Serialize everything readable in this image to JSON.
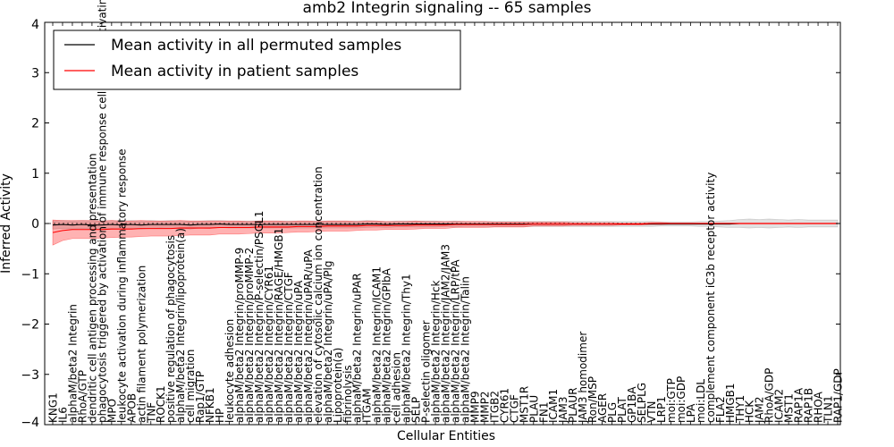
{
  "chart_data": {
    "type": "line",
    "title": "amb2 Integrin signaling -- 65 samples",
    "xlabel": "Cellular Entities",
    "ylabel": "Inferred Activity",
    "ylim": [
      -4,
      4
    ],
    "yticks": [
      -4,
      -3,
      -2,
      -1,
      0,
      1,
      2,
      3,
      4
    ],
    "legend_position": "top-left",
    "categories": [
      "KNG1",
      "IL6",
      "alphaM/beta2 Integrin",
      "RhoA/GTP",
      "dendritic cell antigen processing and presentation",
      "phagocytosis triggered by activation of immune response cell surface activating receptor",
      "MPO",
      "leukocyte activation during inflammatory response",
      "APOB",
      "actin filament polymerization",
      "TNF",
      "ROCK1",
      "positive regulation of phagocytosis",
      "alphaM/beta2 Integrin/lipoprotein(a)",
      "cell migration",
      "Rap1/GTP",
      "NFKB1",
      "HP",
      "leukocyte adhesion",
      "alphaM/beta2 Integrin/proMMP-9",
      "alphaM/beta2 Integrin/proMMP-2",
      "alphaM/beta2 Integrin/P-selectin/PSGL1",
      "alphaM/beta2 Integrin/CYR61",
      "alphaM/beta2 Integrin/RAGE/HMGB1",
      "alphaM/beta2 Integrin/CTGF",
      "alphaM/beta2 Integrin/uPA",
      "alphaM/beta2 Integrin/uPAR/uPA",
      "elevation of cytosolic calcium ion concentration",
      "alphaM/beta2 Integrin/uPA/Plg",
      "Lipoprotein(a)",
      "fibrinolysis",
      "alphaM/beta2 Integrin/uPAR",
      "ITGAM",
      "alphaM/beta2 Integrin/ICAM1",
      "alphaM/beta2 Integrin/GPIbA",
      "cell adhesion",
      "alphaM/beta2 Integrin/Thy1",
      "SELP",
      "P-selectin oligomer",
      "alphaM/beta2 Integrin/Hck",
      "alphaM/beta2 Integrin/JAM2/JAM3",
      "alphaM/beta2 Integrin/LRP/tPA",
      "alphaM/beta2 Integrin/Talin",
      "MMP9",
      "MMP2",
      "ITGB2",
      "CYR61",
      "CTGF",
      "MST1R",
      "PLAU",
      "FN1",
      "ICAM1",
      "JAM3",
      "PLAUR",
      "JAM3 homodimer",
      "Ron/MSP",
      "AGER",
      "PLG",
      "PLAT",
      "GP1BA",
      "SELPLG",
      "VTN",
      "LRP1",
      "moi:GTP",
      "moi:GDP",
      "LPA",
      "moi:LDL",
      "complement component iC3b receptor activity",
      "FLA2",
      "HMGB1",
      "THY1",
      "HCK",
      "JAM2",
      "RhoA/GDP",
      "ICAM2",
      "MST1",
      "RAP1A",
      "RAP1B",
      "RHOA",
      "TLN1",
      "RAP1/GDP"
    ],
    "series": [
      {
        "name": "Mean activity in all permuted samples",
        "color": "#000000",
        "values": [
          -0.03,
          -0.02,
          -0.03,
          -0.02,
          -0.03,
          -0.03,
          -0.02,
          -0.03,
          -0.02,
          -0.03,
          -0.02,
          -0.02,
          -0.02,
          -0.02,
          -0.03,
          -0.02,
          -0.02,
          -0.01,
          -0.02,
          -0.02,
          -0.02,
          -0.02,
          -0.02,
          -0.02,
          -0.02,
          -0.02,
          -0.02,
          -0.02,
          -0.02,
          -0.02,
          -0.02,
          -0.02,
          -0.01,
          -0.01,
          -0.02,
          -0.01,
          -0.01,
          -0.01,
          -0.01,
          -0.01,
          -0.01,
          -0.01,
          -0.01,
          -0.01,
          -0.01,
          -0.01,
          -0.01,
          -0.01,
          -0.01,
          -0.01,
          -0.01,
          -0.01,
          -0.01,
          -0.01,
          -0.01,
          -0.01,
          -0.01,
          -0.01,
          -0.01,
          -0.01,
          -0.01,
          -0.01,
          -0.01,
          -0.01,
          -0.01,
          -0.01,
          -0.01,
          -0.01,
          -0.01,
          -0.01,
          0,
          0,
          0,
          0,
          0,
          0,
          0,
          0,
          0,
          0,
          0
        ],
        "band": [
          0.08,
          0.08,
          0.08,
          0.08,
          0.08,
          0.08,
          0.08,
          0.08,
          0.08,
          0.08,
          0.08,
          0.07,
          0.08,
          0.07,
          0.08,
          0.07,
          0.08,
          0.07,
          0.07,
          0.07,
          0.07,
          0.07,
          0.07,
          0.07,
          0.07,
          0.07,
          0.07,
          0.07,
          0.07,
          0.07,
          0.07,
          0.07,
          0.07,
          0.06,
          0.06,
          0.06,
          0.06,
          0.06,
          0.06,
          0.06,
          0.05,
          0.06,
          0.05,
          0.05,
          0.05,
          0.05,
          0.05,
          0.05,
          0.05,
          0.05,
          0.05,
          0.05,
          0.05,
          0.05,
          0.05,
          0.05,
          0.05,
          0.05,
          0.05,
          0.05,
          0.05,
          0.05,
          0.04,
          0.04,
          0.04,
          0.04,
          0.05,
          0.05,
          0.06,
          0.07,
          0.08,
          0.09,
          0.08,
          0.09,
          0.08,
          0.07,
          0.08,
          0.07,
          0.07,
          0.07,
          0.07
        ]
      },
      {
        "name": "Mean activity in patient samples",
        "color": "#ff0000",
        "values": [
          -0.18,
          -0.14,
          -0.12,
          -0.12,
          -0.12,
          -0.12,
          -0.11,
          -0.11,
          -0.11,
          -0.1,
          -0.1,
          -0.1,
          -0.1,
          -0.09,
          -0.09,
          -0.09,
          -0.09,
          -0.08,
          -0.08,
          -0.08,
          -0.08,
          -0.07,
          -0.07,
          -0.07,
          -0.07,
          -0.06,
          -0.06,
          -0.06,
          -0.05,
          -0.05,
          -0.05,
          -0.05,
          -0.04,
          -0.04,
          -0.04,
          -0.04,
          -0.04,
          -0.03,
          -0.03,
          -0.03,
          -0.03,
          -0.02,
          -0.02,
          -0.02,
          -0.02,
          -0.02,
          -0.02,
          -0.02,
          -0.02,
          -0.01,
          -0.01,
          -0.01,
          -0.01,
          -0.01,
          -0.01,
          -0.01,
          -0.01,
          -0.01,
          -0.01,
          -0.01,
          -0.01,
          0,
          0,
          0,
          0,
          0,
          0,
          0,
          0,
          0,
          0,
          0,
          0,
          0,
          0,
          0,
          0,
          0,
          0,
          0,
          0
        ],
        "band": [
          0.25,
          0.2,
          0.18,
          0.18,
          0.18,
          0.17,
          0.17,
          0.16,
          0.16,
          0.16,
          0.15,
          0.15,
          0.15,
          0.15,
          0.14,
          0.14,
          0.14,
          0.13,
          0.13,
          0.13,
          0.12,
          0.12,
          0.12,
          0.12,
          0.11,
          0.11,
          0.11,
          0.1,
          0.1,
          0.1,
          0.1,
          0.09,
          0.09,
          0.09,
          0.08,
          0.08,
          0.08,
          0.08,
          0.07,
          0.07,
          0.07,
          0.06,
          0.06,
          0.06,
          0.06,
          0.05,
          0.05,
          0.05,
          0.05,
          0.04,
          0.04,
          0.04,
          0.04,
          0.03,
          0.03,
          0.03,
          0.03,
          0.03,
          0.02,
          0.02,
          0.02,
          0.02,
          0.02,
          0.01,
          0.01,
          0.01,
          0.01,
          0.01,
          0.01,
          0.01,
          0.01,
          0.01,
          0.01,
          0.01,
          0.01,
          0.01,
          0.01,
          0.01,
          0.01,
          0.01,
          0.01
        ]
      }
    ]
  }
}
